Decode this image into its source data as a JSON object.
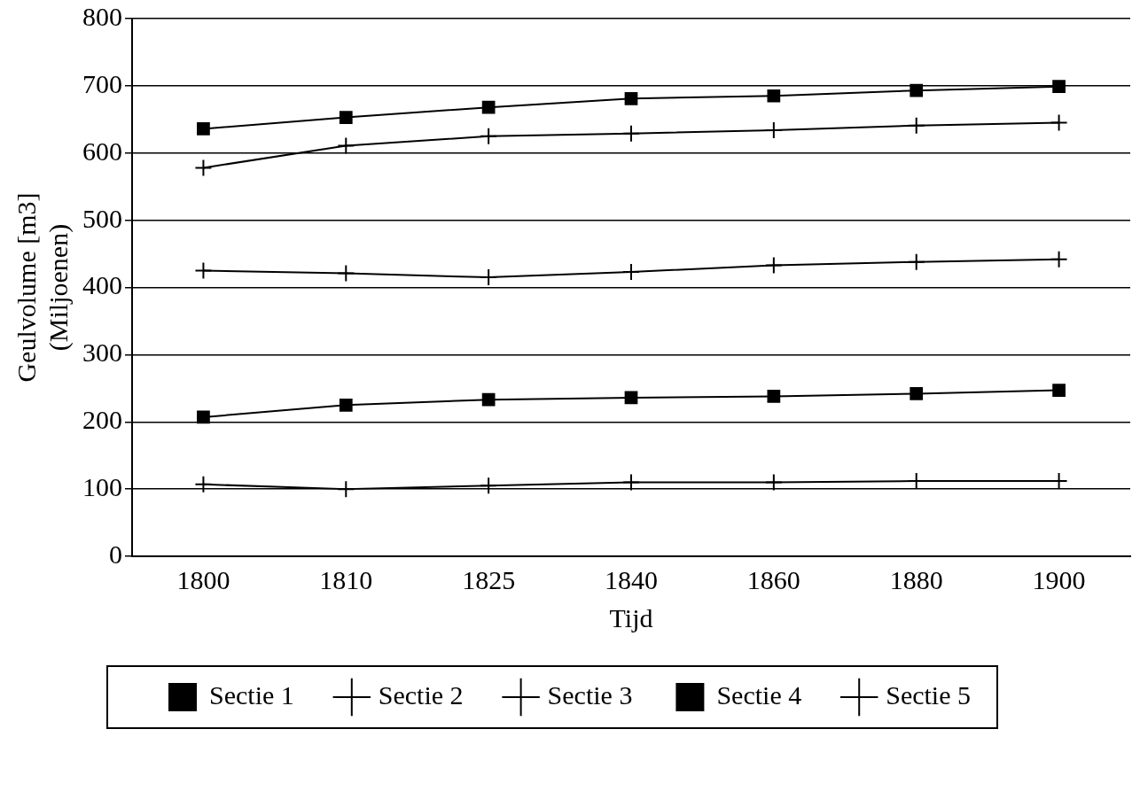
{
  "chart_data": {
    "type": "line",
    "xlabel": "Tijd",
    "ylabel": "Geulvolume [m3]\n(Miljoenen)",
    "categories": [
      "1800",
      "1810",
      "1825",
      "1840",
      "1860",
      "1880",
      "1900"
    ],
    "ylim": [
      0,
      800
    ],
    "yticks": [
      0,
      100,
      200,
      300,
      400,
      500,
      600,
      700,
      800
    ],
    "grid": "y",
    "legend": "bottom",
    "line_style": "solid",
    "series": [
      {
        "name": "Sectie 1",
        "color": "#000000",
        "marker": "square",
        "values": [
          636,
          653,
          668,
          681,
          685,
          693,
          699
        ]
      },
      {
        "name": "Sectie 2",
        "color": "#000000",
        "marker": "cross",
        "values": [
          578,
          611,
          625,
          629,
          634,
          641,
          645
        ]
      },
      {
        "name": "Sectie 3",
        "color": "#000000",
        "marker": "cross",
        "values": [
          425,
          421,
          415,
          423,
          433,
          438,
          442
        ]
      },
      {
        "name": "Sectie 4",
        "color": "#000000",
        "marker": "square",
        "values": [
          207,
          225,
          233,
          236,
          238,
          242,
          247
        ]
      },
      {
        "name": "Sectie 5",
        "color": "#000000",
        "marker": "cross",
        "values": [
          107,
          100,
          105,
          110,
          110,
          112,
          112
        ]
      }
    ]
  }
}
